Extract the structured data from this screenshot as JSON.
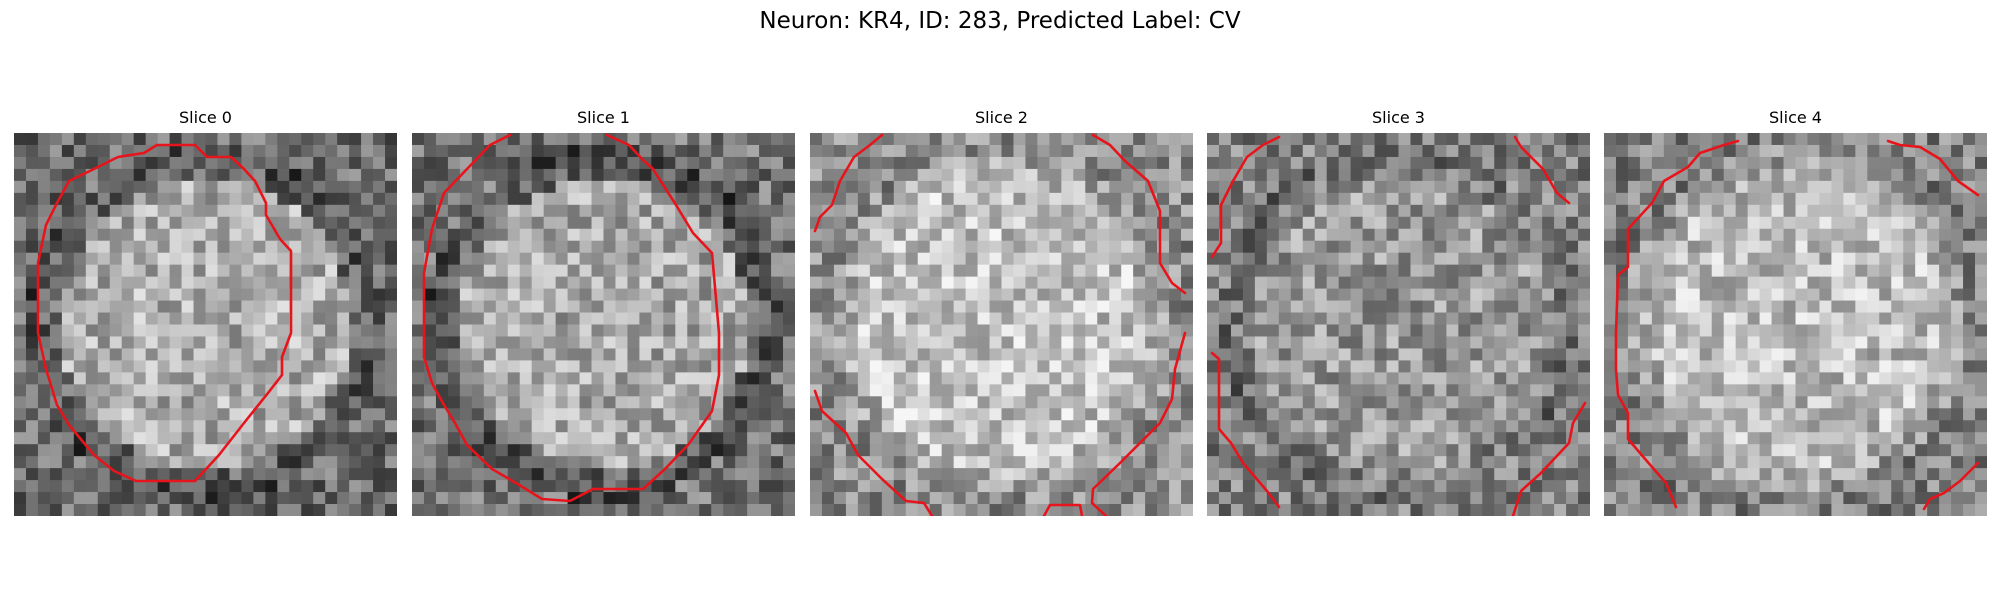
{
  "figure": {
    "title": "Neuron: KR4, ID: 283, Predicted Label: CV"
  },
  "panels": [
    {
      "label": "Slice 0",
      "center_brightness": 0.68,
      "edge_brightness": 0.42,
      "ring_darkness": 0.25
    },
    {
      "label": "Slice 1",
      "center_brightness": 0.66,
      "edge_brightness": 0.45,
      "ring_darkness": 0.25
    },
    {
      "label": "Slice 2",
      "center_brightness": 0.76,
      "edge_brightness": 0.55,
      "ring_darkness": 0.05
    },
    {
      "label": "Slice 3",
      "center_brightness": 0.6,
      "edge_brightness": 0.5,
      "ring_darkness": 0.05
    },
    {
      "label": "Slice 4",
      "center_brightness": 0.74,
      "edge_brightness": 0.5,
      "ring_darkness": 0.05
    }
  ],
  "colors": {
    "contour": "#e8141c",
    "background": "#ffffff"
  },
  "image": {
    "grid_size": 32,
    "colormap": "gray"
  }
}
